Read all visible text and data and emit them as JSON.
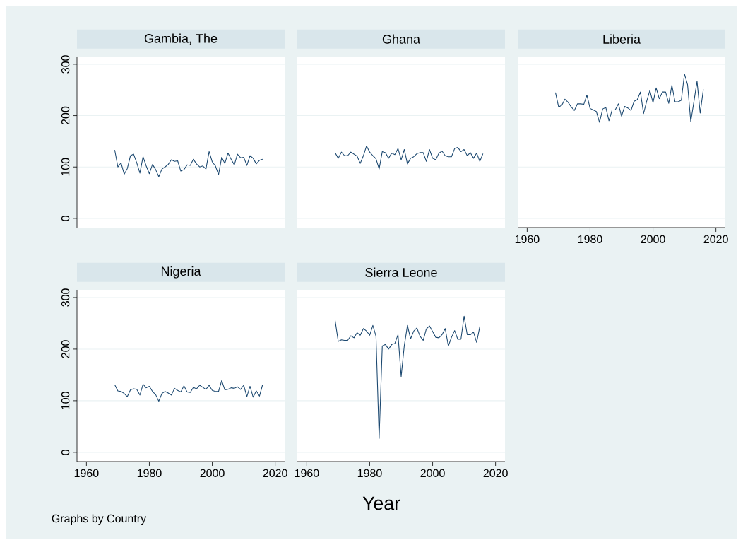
{
  "chart_data": [
    {
      "type": "line",
      "title": "Gambia, The",
      "color": "#1a476f",
      "grid": "y",
      "tick_labels": "y",
      "xlim": [
        1957,
        2023
      ],
      "ylim": [
        -18,
        315
      ],
      "xticks": [
        1960,
        1980,
        2000,
        2020
      ],
      "yticks": [
        0,
        100,
        200,
        300
      ],
      "x": [
        1969,
        1970,
        1971,
        1972,
        1973,
        1974,
        1975,
        1976,
        1977,
        1978,
        1979,
        1980,
        1981,
        1982,
        1983,
        1984,
        1985,
        1986,
        1987,
        1988,
        1989,
        1990,
        1991,
        1992,
        1993,
        1994,
        1995,
        1996,
        1997,
        1998,
        1999,
        2000,
        2001,
        2002,
        2003,
        2004,
        2005,
        2006,
        2007,
        2008,
        2009,
        2010,
        2011,
        2012,
        2013,
        2014,
        2015,
        2016
      ],
      "values": [
        133,
        100,
        108,
        86,
        97,
        122,
        125,
        108,
        88,
        120,
        102,
        87,
        105,
        95,
        81,
        96,
        100,
        105,
        114,
        111,
        112,
        92,
        95,
        104,
        103,
        115,
        106,
        100,
        102,
        96,
        130,
        110,
        102,
        85,
        119,
        107,
        127,
        115,
        104,
        125,
        118,
        119,
        103,
        122,
        117,
        106,
        113,
        115
      ]
    },
    {
      "type": "line",
      "title": "Ghana",
      "color": "#1a476f",
      "grid": "y",
      "tick_labels": false,
      "xlim": [
        1957,
        2023
      ],
      "ylim": [
        -18,
        315
      ],
      "xticks": [
        1960,
        1980,
        2000,
        2020
      ],
      "yticks": [
        0,
        100,
        200,
        300
      ],
      "x": [
        1969,
        1970,
        1971,
        1972,
        1973,
        1974,
        1975,
        1976,
        1977,
        1978,
        1979,
        1980,
        1981,
        1982,
        1983,
        1984,
        1985,
        1986,
        1987,
        1988,
        1989,
        1990,
        1991,
        1992,
        1993,
        1994,
        1995,
        1996,
        1997,
        1998,
        1999,
        2000,
        2001,
        2002,
        2003,
        2004,
        2005,
        2006,
        2007,
        2008,
        2009,
        2010,
        2011,
        2012,
        2013,
        2014,
        2015,
        2016
      ],
      "values": [
        128,
        117,
        129,
        122,
        122,
        129,
        125,
        121,
        107,
        122,
        141,
        129,
        122,
        116,
        96,
        130,
        128,
        117,
        127,
        124,
        136,
        114,
        134,
        106,
        117,
        120,
        126,
        128,
        128,
        111,
        134,
        117,
        114,
        127,
        131,
        122,
        120,
        120,
        136,
        138,
        130,
        134,
        122,
        128,
        117,
        127,
        111,
        126
      ]
    },
    {
      "type": "line",
      "title": "Liberia",
      "color": "#1a476f",
      "grid": "y",
      "tick_labels": "x",
      "xlim": [
        1957,
        2023
      ],
      "ylim": [
        -18,
        315
      ],
      "xticks": [
        1960,
        1980,
        2000,
        2020
      ],
      "yticks": [
        0,
        100,
        200,
        300
      ],
      "x": [
        1969,
        1970,
        1971,
        1972,
        1973,
        1974,
        1975,
        1976,
        1977,
        1978,
        1979,
        1980,
        1981,
        1982,
        1983,
        1984,
        1985,
        1986,
        1987,
        1988,
        1989,
        1990,
        1991,
        1992,
        1993,
        1994,
        1995,
        1996,
        1997,
        1998,
        1999,
        2000,
        2001,
        2002,
        2003,
        2004,
        2005,
        2006,
        2007,
        2008,
        2009,
        2010,
        2011,
        2012,
        2013,
        2014,
        2015,
        2016
      ],
      "values": [
        245,
        217,
        220,
        232,
        226,
        217,
        210,
        223,
        223,
        222,
        240,
        214,
        211,
        208,
        187,
        213,
        216,
        190,
        211,
        211,
        223,
        199,
        218,
        215,
        210,
        228,
        231,
        246,
        204,
        228,
        249,
        225,
        254,
        233,
        246,
        246,
        224,
        259,
        227,
        227,
        230,
        281,
        260,
        188,
        227,
        267,
        205,
        251
      ]
    },
    {
      "type": "line",
      "title": "Nigeria",
      "color": "#1a476f",
      "grid": "y",
      "xlim": [
        1957,
        2023
      ],
      "ylim": [
        -18,
        315
      ],
      "xticks": [
        1960,
        1980,
        2000,
        2020
      ],
      "yticks": [
        0,
        100,
        200,
        300
      ],
      "annotations": [
        "Graphs by Country"
      ],
      "x": [
        1969,
        1970,
        1971,
        1972,
        1973,
        1974,
        1975,
        1976,
        1977,
        1978,
        1979,
        1980,
        1981,
        1982,
        1983,
        1984,
        1985,
        1986,
        1987,
        1988,
        1989,
        1990,
        1991,
        1992,
        1993,
        1994,
        1995,
        1996,
        1997,
        1998,
        1999,
        2000,
        2001,
        2002,
        2003,
        2004,
        2005,
        2006,
        2007,
        2008,
        2009,
        2010,
        2011,
        2012,
        2013,
        2014,
        2015,
        2016
      ],
      "values": [
        131,
        119,
        118,
        114,
        108,
        121,
        123,
        122,
        111,
        132,
        125,
        128,
        118,
        112,
        99,
        114,
        118,
        115,
        111,
        124,
        120,
        117,
        129,
        117,
        116,
        126,
        123,
        130,
        126,
        122,
        130,
        120,
        118,
        118,
        139,
        121,
        122,
        125,
        124,
        127,
        122,
        130,
        108,
        128,
        107,
        119,
        109,
        131
      ]
    },
    {
      "type": "line",
      "title": "Sierra Leone",
      "color": "#1a476f",
      "grid": "y",
      "tick_labels": "x",
      "xlabel": "Year",
      "xlim": [
        1957,
        2023
      ],
      "ylim": [
        -18,
        315
      ],
      "xticks": [
        1960,
        1980,
        2000,
        2020
      ],
      "yticks": [
        0,
        100,
        200,
        300
      ],
      "x": [
        1969,
        1970,
        1971,
        1972,
        1973,
        1974,
        1975,
        1976,
        1977,
        1978,
        1979,
        1980,
        1981,
        1982,
        1983,
        1984,
        1985,
        1986,
        1987,
        1988,
        1989,
        1990,
        1991,
        1992,
        1993,
        1994,
        1995,
        1996,
        1997,
        1998,
        1999,
        2000,
        2001,
        2002,
        2003,
        2004,
        2005,
        2006,
        2007,
        2008,
        2009,
        2010,
        2011,
        2012,
        2013,
        2014,
        2015
      ],
      "values": [
        256,
        215,
        218,
        217,
        217,
        226,
        222,
        232,
        227,
        240,
        235,
        227,
        246,
        225,
        27,
        206,
        209,
        200,
        209,
        211,
        228,
        147,
        207,
        246,
        220,
        235,
        241,
        225,
        217,
        239,
        245,
        234,
        223,
        222,
        228,
        240,
        206,
        223,
        236,
        219,
        219,
        264,
        228,
        228,
        233,
        213,
        244
      ]
    }
  ]
}
